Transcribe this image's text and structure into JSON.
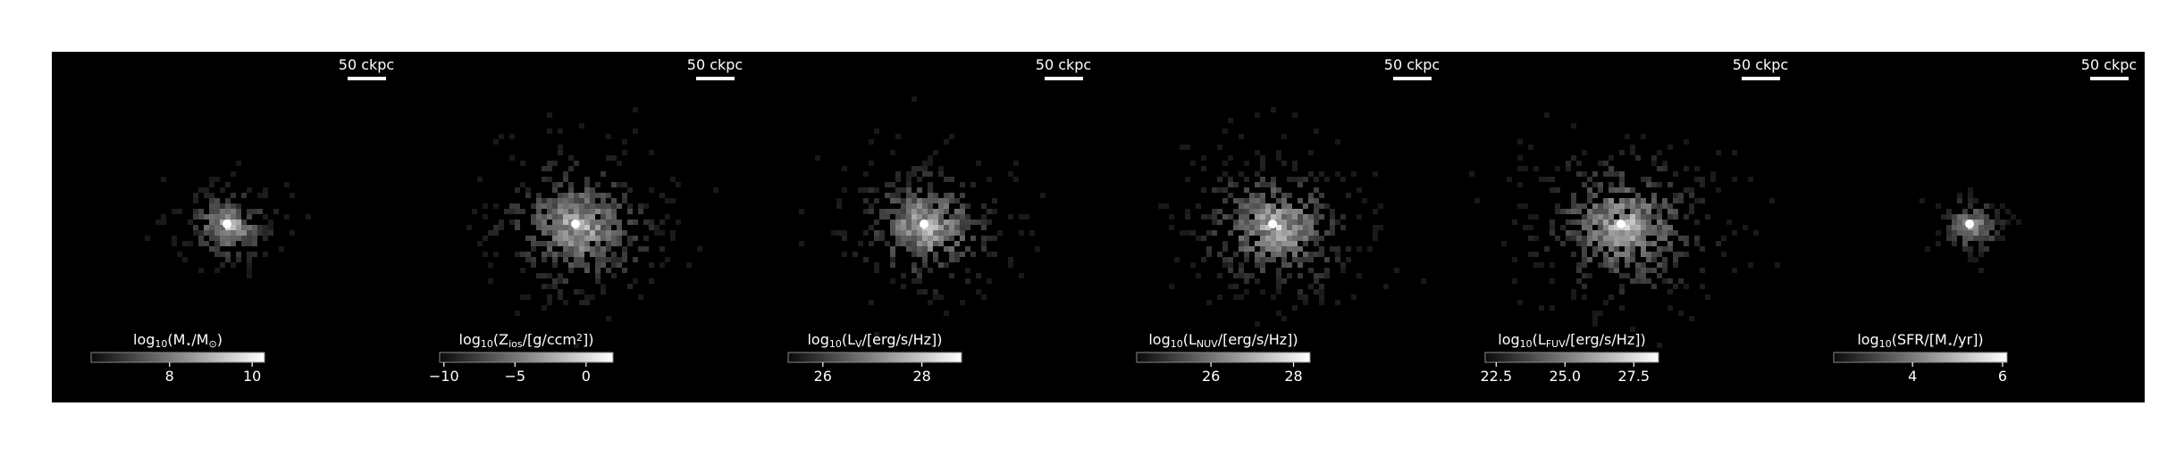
{
  "chart_data": [
    {
      "type": "image",
      "scalebar": "50 ckpc",
      "label_parts": [
        {
          "text": "log"
        },
        {
          "text": "10",
          "sub": true
        },
        {
          "text": "(M"
        },
        {
          "text": "⋆",
          "sub": true
        },
        {
          "text": "/M"
        },
        {
          "text": "⊙",
          "sub": true
        },
        {
          "text": ")"
        }
      ],
      "clim": [
        6.1,
        10.3
      ],
      "cticks": [
        8,
        10
      ],
      "spread": 0.55
    },
    {
      "type": "image",
      "scalebar": "50 ckpc",
      "label_parts": [
        {
          "text": "log"
        },
        {
          "text": "10",
          "sub": true
        },
        {
          "text": "(Z"
        },
        {
          "text": "ios",
          "sub": true
        },
        {
          "text": "/[g/ccm"
        },
        {
          "text": "2",
          "sup": true
        },
        {
          "text": "])"
        }
      ],
      "clim": [
        -10.3,
        1.9
      ],
      "cticks": [
        {
          "value": -10,
          "label": "−10"
        },
        {
          "value": -5,
          "label": "−5"
        },
        0
      ],
      "spread": 1.0
    },
    {
      "type": "image",
      "scalebar": "50 ckpc",
      "label_parts": [
        {
          "text": "log"
        },
        {
          "text": "10",
          "sub": true
        },
        {
          "text": "(L"
        },
        {
          "text": "V",
          "sub": true
        },
        {
          "text": "/[erg/s/Hz])"
        }
      ],
      "clim": [
        25.3,
        28.8
      ],
      "cticks": [
        26,
        28
      ],
      "spread": 0.9
    },
    {
      "type": "image",
      "scalebar": "50 ckpc",
      "label_parts": [
        {
          "text": "log"
        },
        {
          "text": "10",
          "sub": true
        },
        {
          "text": "(L"
        },
        {
          "text": "NUV",
          "sub": true
        },
        {
          "text": "/[erg/s/Hz])"
        }
      ],
      "clim": [
        24.2,
        28.4
      ],
      "cticks": [
        26,
        28
      ],
      "spread": 1.0
    },
    {
      "type": "image",
      "scalebar": "50 ckpc",
      "label_parts": [
        {
          "text": "log"
        },
        {
          "text": "10",
          "sub": true
        },
        {
          "text": "(L"
        },
        {
          "text": "FUV",
          "sub": true
        },
        {
          "text": "/[erg/s/Hz])"
        }
      ],
      "clim": [
        22.1,
        28.4
      ],
      "cticks": [
        {
          "value": 22.5,
          "label": "22.5"
        },
        {
          "value": 25,
          "label": "25.0"
        },
        {
          "value": 27.5,
          "label": "27.5"
        }
      ],
      "spread": 1.1
    },
    {
      "type": "image",
      "scalebar": "50 ckpc",
      "label_parts": [
        {
          "text": "log"
        },
        {
          "text": "10",
          "sub": true
        },
        {
          "text": "(SFR/[M"
        },
        {
          "text": "⋆",
          "sub": true
        },
        {
          "text": "/yr])"
        }
      ],
      "clim": [
        2.25,
        6.1
      ],
      "cticks": [
        4,
        6
      ],
      "spread": 0.4
    }
  ]
}
